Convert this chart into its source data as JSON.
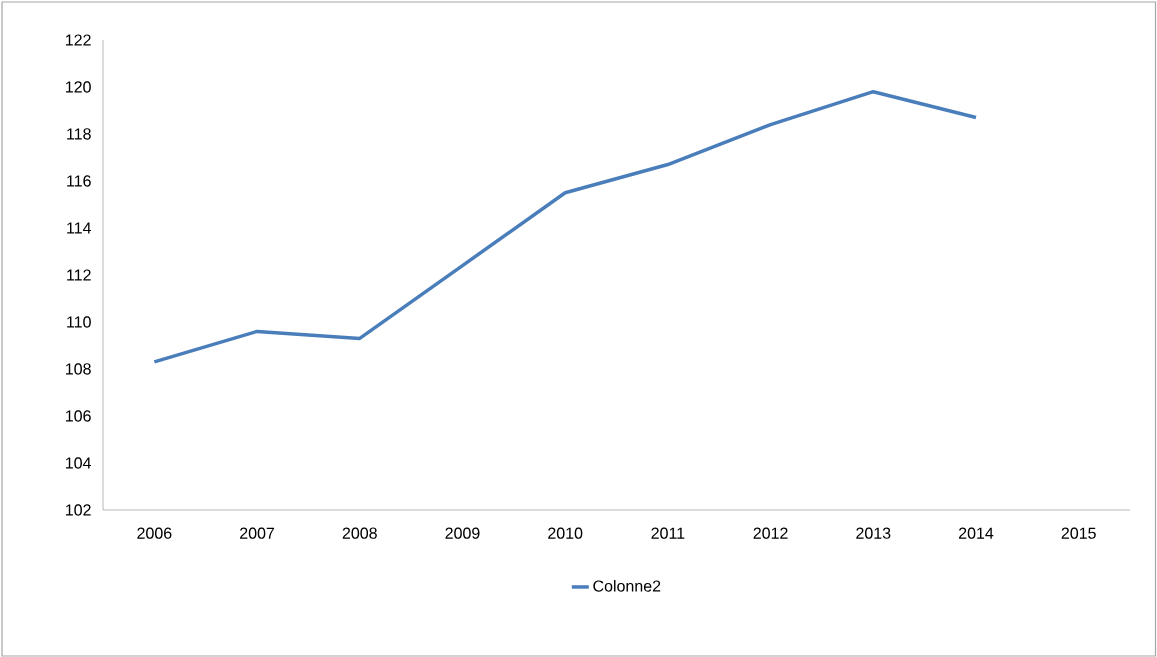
{
  "chart_data": {
    "type": "line",
    "categories": [
      "2006",
      "2007",
      "2008",
      "2009",
      "2010",
      "2011",
      "2012",
      "2013",
      "2014",
      "2015"
    ],
    "series": [
      {
        "name": "Colonne2",
        "color": "#4a7ebb",
        "values": [
          108.3,
          109.6,
          109.3,
          112.4,
          115.5,
          116.7,
          118.4,
          119.8,
          118.7,
          null
        ]
      }
    ],
    "ylim": [
      102,
      122
    ],
    "yticks": [
      102,
      104,
      106,
      108,
      110,
      112,
      114,
      116,
      118,
      120,
      122
    ],
    "grid": false,
    "legend": "bottom",
    "marker": "none",
    "line_style": "solid"
  }
}
